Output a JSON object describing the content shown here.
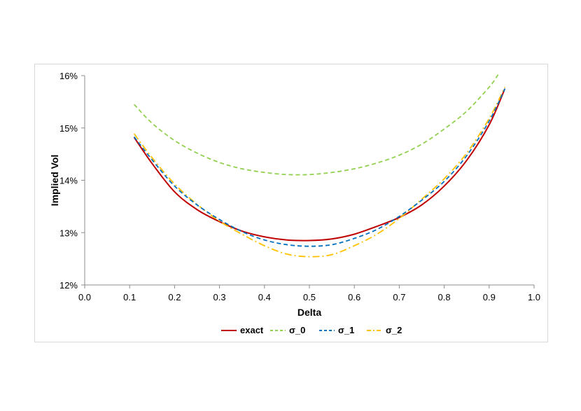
{
  "chart_data": {
    "type": "line",
    "xlabel": "Delta",
    "ylabel": "Implied Vol",
    "xlim": [
      0.0,
      1.0
    ],
    "ylim": [
      0.12,
      0.16
    ],
    "x_ticks": [
      "0.0",
      "0.1",
      "0.2",
      "0.3",
      "0.4",
      "0.5",
      "0.6",
      "0.7",
      "0.8",
      "0.9",
      "1.0"
    ],
    "y_ticks": [
      "12%",
      "13%",
      "14%",
      "15%",
      "16%"
    ],
    "grid": false,
    "legend_position": "bottom",
    "series": [
      {
        "name": "exact",
        "color": "#c00000",
        "dash": "solid",
        "x": [
          0.11,
          0.15,
          0.2,
          0.25,
          0.3,
          0.35,
          0.4,
          0.45,
          0.5,
          0.55,
          0.6,
          0.65,
          0.7,
          0.75,
          0.8,
          0.85,
          0.9,
          0.935
        ],
        "y": [
          0.1482,
          0.1432,
          0.1378,
          0.1344,
          0.1321,
          0.1303,
          0.1292,
          0.1286,
          0.1285,
          0.1288,
          0.1297,
          0.1312,
          0.1329,
          0.1353,
          0.1389,
          0.1438,
          0.1506,
          0.1575
        ]
      },
      {
        "name": "σ_0",
        "color": "#92d050",
        "dash": "dash",
        "x": [
          0.11,
          0.15,
          0.2,
          0.25,
          0.3,
          0.35,
          0.4,
          0.45,
          0.5,
          0.55,
          0.6,
          0.65,
          0.7,
          0.75,
          0.8,
          0.85,
          0.9,
          0.92
        ],
        "y": [
          0.1545,
          0.1509,
          0.1476,
          0.1452,
          0.1434,
          0.1422,
          0.1415,
          0.1411,
          0.1411,
          0.1415,
          0.1422,
          0.1433,
          0.1448,
          0.1469,
          0.1498,
          0.1532,
          0.1578,
          0.1602
        ]
      },
      {
        "name": "σ_1",
        "color": "#0070c0",
        "dash": "dash",
        "x": [
          0.11,
          0.15,
          0.2,
          0.25,
          0.3,
          0.35,
          0.4,
          0.45,
          0.5,
          0.55,
          0.6,
          0.65,
          0.7,
          0.75,
          0.8,
          0.85,
          0.9,
          0.935
        ],
        "y": [
          0.1483,
          0.1439,
          0.1389,
          0.1353,
          0.1325,
          0.1302,
          0.1286,
          0.1277,
          0.1274,
          0.1277,
          0.1289,
          0.1306,
          0.1331,
          0.1362,
          0.1398,
          0.1447,
          0.1513,
          0.1575
        ]
      },
      {
        "name": "σ_2",
        "color": "#ffc000",
        "dash": "dashdot",
        "x": [
          0.11,
          0.15,
          0.2,
          0.25,
          0.3,
          0.35,
          0.4,
          0.45,
          0.5,
          0.55,
          0.6,
          0.65,
          0.7,
          0.75,
          0.8,
          0.85,
          0.9,
          0.935
        ],
        "y": [
          0.1489,
          0.1443,
          0.1393,
          0.1354,
          0.1322,
          0.1297,
          0.1275,
          0.1259,
          0.1254,
          0.1258,
          0.1275,
          0.1297,
          0.1327,
          0.1364,
          0.1403,
          0.1452,
          0.1518,
          0.1578
        ]
      }
    ]
  }
}
